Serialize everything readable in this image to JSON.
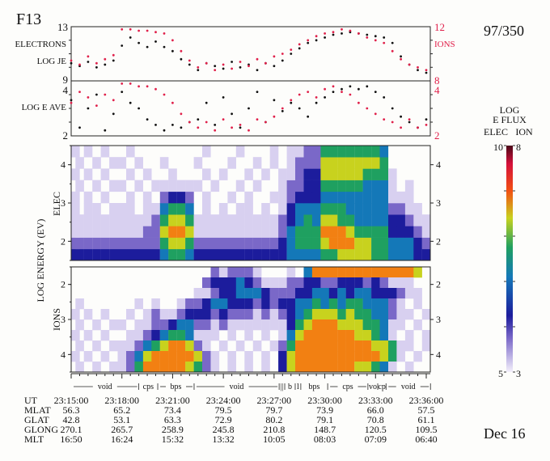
{
  "header": {
    "satellite": "F13",
    "orbit": "97/350",
    "date": "Dec 16"
  },
  "colorbar": {
    "title1": "LOG",
    "title2": "E FLUX",
    "elec_label": "ELEC",
    "ion_label": "ION",
    "elec_max": "10",
    "ion_max": "8",
    "elec_min": "5",
    "ion_min": "3",
    "colors": [
      "#ffffff",
      "#d8d0f0",
      "#7a68c8",
      "#1c1c9c",
      "#1478b8",
      "#1fa060",
      "#c8d21e",
      "#f28012",
      "#e51d12",
      "#5a0c18"
    ]
  },
  "ephemeris": {
    "row_labels": [
      "UT",
      "MLAT",
      "GLAT",
      "GLONG",
      "MLT"
    ],
    "columns": [
      [
        "23:15:00",
        "56.3",
        "42.8",
        "270.1",
        "16:50"
      ],
      [
        "23:18:00",
        "65.2",
        "53.1",
        "265.7",
        "16:24"
      ],
      [
        "23:21:00",
        "73.4",
        "63.3",
        "258.9",
        "15:32"
      ],
      [
        "23:24:00",
        "79.5",
        "72.9",
        "245.8",
        "13:32"
      ],
      [
        "23:27:00",
        "79.7",
        "80.2",
        "210.8",
        "10:05"
      ],
      [
        "23:30:00",
        "73.9",
        "79.1",
        "148.7",
        "08:03"
      ],
      [
        "23:33:00",
        "66.0",
        "70.8",
        "120.5",
        "07:09"
      ],
      [
        "23:36:00",
        "57.5",
        "61.1",
        "109.5",
        "06:40"
      ]
    ]
  },
  "regions": [
    {
      "label": "void",
      "start": 0.0,
      "end": 4.0
    },
    {
      "label": "cps",
      "start": 4.0,
      "end": 5.12
    },
    {
      "label": "bps",
      "start": 5.12,
      "end": 7.27
    },
    {
      "label": "void",
      "start": 7.27,
      "end": 12.3
    },
    {
      "label": "||",
      "start": 12.3,
      "end": 12.63
    },
    {
      "label": "b",
      "start": 12.63,
      "end": 13.25
    },
    {
      "label": "l",
      "start": 13.25,
      "end": 13.58
    },
    {
      "label": "bps",
      "start": 13.58,
      "end": 15.17
    },
    {
      "label": "cps",
      "start": 15.17,
      "end": 17.55
    },
    {
      "label": "vo",
      "start": 17.55,
      "end": 18.13
    },
    {
      "label": "cp",
      "start": 18.13,
      "end": 18.62
    },
    {
      "label": "void",
      "start": 18.62,
      "end": 21.25
    }
  ],
  "chart_data": [
    {
      "type": "scatter",
      "title": "LOG JE",
      "left_label": "ELECTRONS",
      "right_label": "IONS",
      "x_start": "23:15:00",
      "x_step_minutes": 0.5,
      "ylim_elec": [
        9,
        13
      ],
      "ylim_ion": [
        8,
        12
      ],
      "yticks_elec": [
        "13",
        "9"
      ],
      "yticks_ion": [
        "12",
        "8"
      ],
      "series": [
        {
          "name": "electrons",
          "color": "#111111",
          "values": [
            10.3,
            10.1,
            10.4,
            10.0,
            10.2,
            10.5,
            11.6,
            12.2,
            11.8,
            11.5,
            11.9,
            11.5,
            11.2,
            10.6,
            10.2,
            9.8,
            10.3,
            10.1,
            9.9,
            10.4,
            10.0,
            10.2,
            9.8,
            10.3,
            10.1,
            10.5,
            11.0,
            11.4,
            11.8,
            12.0,
            12.2,
            12.4,
            12.5,
            12.6,
            12.5,
            12.4,
            12.3,
            12.2,
            11.8,
            10.8,
            10.2,
            9.8,
            9.6
          ]
        },
        {
          "name": "ions",
          "color": "#e0204a",
          "values": [
            9.5,
            9.2,
            9.8,
            9.3,
            9.6,
            9.9,
            11.8,
            11.8,
            11.7,
            11.7,
            11.6,
            11.5,
            11.0,
            10.2,
            9.5,
            9.0,
            9.3,
            8.8,
            9.2,
            8.9,
            9.4,
            9.1,
            9.6,
            9.3,
            9.8,
            10.0,
            10.3,
            10.7,
            11.0,
            11.3,
            11.5,
            11.6,
            11.8,
            11.7,
            11.5,
            11.2,
            11.0,
            10.8,
            10.2,
            9.6,
            9.2,
            9.0,
            8.8
          ]
        }
      ]
    },
    {
      "type": "scatter",
      "title": "LOG E AVE",
      "ylim": [
        2,
        4
      ],
      "yticks": [
        "4",
        "2"
      ],
      "series": [
        {
          "name": "electrons",
          "color": "#111111",
          "values": [
            3.3,
            2.3,
            3.0,
            3.5,
            2.2,
            2.8,
            3.6,
            3.2,
            3.0,
            2.6,
            2.4,
            2.2,
            2.4,
            2.3,
            2.5,
            2.6,
            3.2,
            2.4,
            3.4,
            2.8,
            2.3,
            3.0,
            3.6,
            2.5,
            3.3,
            2.9,
            3.2,
            3.0,
            2.7,
            3.2,
            3.4,
            3.6,
            3.7,
            3.8,
            3.7,
            3.8,
            3.6,
            3.4,
            3.0,
            2.7,
            2.5,
            2.3,
            2.6
          ]
        },
        {
          "name": "ions",
          "color": "#e0204a",
          "values": [
            3.2,
            3.6,
            3.4,
            3.1,
            3.5,
            3.3,
            3.9,
            3.9,
            3.8,
            3.8,
            3.7,
            3.5,
            3.2,
            2.8,
            2.5,
            2.3,
            2.5,
            2.2,
            2.6,
            2.3,
            2.4,
            2.2,
            2.6,
            2.5,
            2.7,
            3.0,
            3.3,
            3.5,
            3.6,
            3.4,
            3.7,
            3.8,
            3.6,
            3.5,
            3.2,
            3.0,
            2.8,
            2.6,
            2.5,
            2.3,
            2.6,
            2.3,
            2.4
          ]
        }
      ]
    },
    {
      "type": "heatmap",
      "title": "ELEC",
      "ylabel": "LOG ENERGY (EV)",
      "ylim": [
        1.5,
        4.5
      ],
      "yticks": [
        "2",
        "3",
        "4"
      ],
      "energy_bin_width": 0.3,
      "level_note": "levels 0-9 on colorbar",
      "rows": [
        "33333333333455433333333333444455666655444 33",
        "2222222222256652222222222345556777665544432",
        "1111111112267761111111111245557776555533321",
        "1111111111256651111111111234546655444433211",
        "1011011101145540101011010134445554444422110",
        "1010100101023320100101001123334444444411100",
        "0101011010111111010010100122335555544410100",
        "1010100101001000101001010112336666655510000",
        "0101011010010001000100101012226666666500000",
        "1010100100000000100010001011225555555400000"
      ]
    },
    {
      "type": "heatmap",
      "title": "IONS",
      "ylim": [
        1.5,
        4.5
      ],
      "yticks": [
        "2",
        "3",
        "4"
      ],
      "inverted": true,
      "rows": [
        "0000000000000000021222100010477777777777760",
        "0000000000000000233343211122332233323211100",
        "0000000000000001123344432223344343443332110",
        "0100000010100122344333232334454545544421010",
        "1010100101211233323222121234566656554421101",
        "0101011011223442212111111135677766655411010",
        "1010100112345541110101010146777777665410101",
        "0101011124567762101010101257777777776651101",
        "1010101246777776210101010367777777777651010",
        "0101011257777765210101010367777777665410100"
      ]
    }
  ],
  "labels": {
    "electrons": "ELECTRONS",
    "log_je": "LOG JE",
    "ions": "IONS",
    "log_eave": "LOG E AVE",
    "elec_axis": "ELEC",
    "ions_axis": "IONS",
    "energy_axis": "LOG ENERGY (EV)"
  }
}
